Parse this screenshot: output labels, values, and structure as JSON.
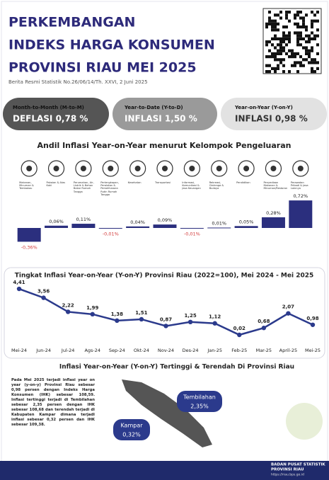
{
  "header": {
    "title": [
      "PERKEMBANGAN",
      "INDEKS HARGA KONSUMEN",
      "PROVINSI RIAU MEI 2025"
    ],
    "subtitle": "Berita Resmi Statistik No.26/06/14/Th. XXVI, 2 Juni 2025"
  },
  "cards": [
    {
      "label": "Month-to-Month (M-to-M)",
      "value": "DEFLASI 0,78 %"
    },
    {
      "label": "Year-to-Date (Y-to-D)",
      "value": "INFLASI 1,50 %"
    },
    {
      "label": "Year-on-Year (Y-on-Y)",
      "value": "INFLASI 0,98 %"
    }
  ],
  "chart_data": [
    {
      "type": "bar",
      "title": "Andil Inflasi Year-on-Year menurut Kelompok Pengeluaran",
      "color": "#2b2f7e",
      "negative_label_color": "#d33b3b",
      "categories": [
        "Makanan, Minuman & Tembakau",
        "Pakaian & Alas Kaki",
        "Perumahan, Air, Listrik & Bahan Bakar Rumah Tangga",
        "Perlengkapan, Peralatan & Pemeliharaan Rutin Rumah Tangga",
        "Kesehatan",
        "Transportasi",
        "Informasi, Komunikasi & Jasa Keuangan",
        "Rekreasi, Olahraga & Budaya",
        "Pendidikan",
        "Penyediaan Makanan & Minuman/Restoran",
        "Perawatan Pribadi & Jasa Lainnya"
      ],
      "values": [
        -0.36,
        0.06,
        0.11,
        -0.01,
        0.04,
        0.09,
        -0.01,
        0.01,
        0.05,
        0.28,
        0.72
      ],
      "value_labels": [
        "-0,36%",
        "0,06%",
        "0,11%",
        "-0,01%",
        "0,04%",
        "0,09%",
        "-0,01%",
        "0,01%",
        "0,05%",
        "0,28%",
        "0,72%"
      ]
    },
    {
      "type": "line",
      "title": "Tingkat Inflasi Year-on-Year (Y-on-Y) Provinsi Riau (2022=100), Mei 2024 - Mei 2025",
      "color": "#2b3a8c",
      "categories": [
        "Mei-24",
        "Jun-24",
        "Jul-24",
        "Ags-24",
        "Sep-24",
        "Okt-24",
        "Nov-24",
        "Des-24",
        "Jan-25",
        "Feb-25",
        "Mar-25",
        "April-25",
        "Mei-25"
      ],
      "values": [
        4.41,
        3.56,
        2.22,
        1.99,
        1.38,
        1.51,
        0.87,
        1.25,
        1.12,
        0.02,
        0.68,
        2.07,
        0.98
      ],
      "value_labels": [
        "4,41",
        "3,56",
        "2,22",
        "1,99",
        "1,38",
        "1,51",
        "0,87",
        "1,25",
        "1,12",
        "0,02",
        "0,68",
        "2,07",
        "0,98"
      ]
    }
  ],
  "highlight": {
    "title": "Inflasi Year-on-Year (Y-on-Y) Tertinggi & Terendah Di Provinsi Riau",
    "text": "Pada Mei 2025 terjadi inflasi year on year (y-on-y) Provinsi Riau sebesar 0,98 persen dengan Indeks Harga Konsumen (IHK) sebesar 108,59. Inflasi tertinggi terjadi di Tembilahan sebesar 2,35 persen dengan IHK sebesar 108,68 dan terendah terjadi di Kabupaten Kampar dimana terjadi inflasi sebesar 0,32 persen dan IHK sebesar 109,38.",
    "high": {
      "city": "Tembilahan",
      "value": "2,35%"
    },
    "low": {
      "city": "Kampar",
      "value": "0,32%"
    }
  },
  "footer": {
    "org": [
      "BADAN PUSAT STATISTIK",
      "PROVINSI RIAU"
    ],
    "url": "https://riau.bps.go.id"
  }
}
